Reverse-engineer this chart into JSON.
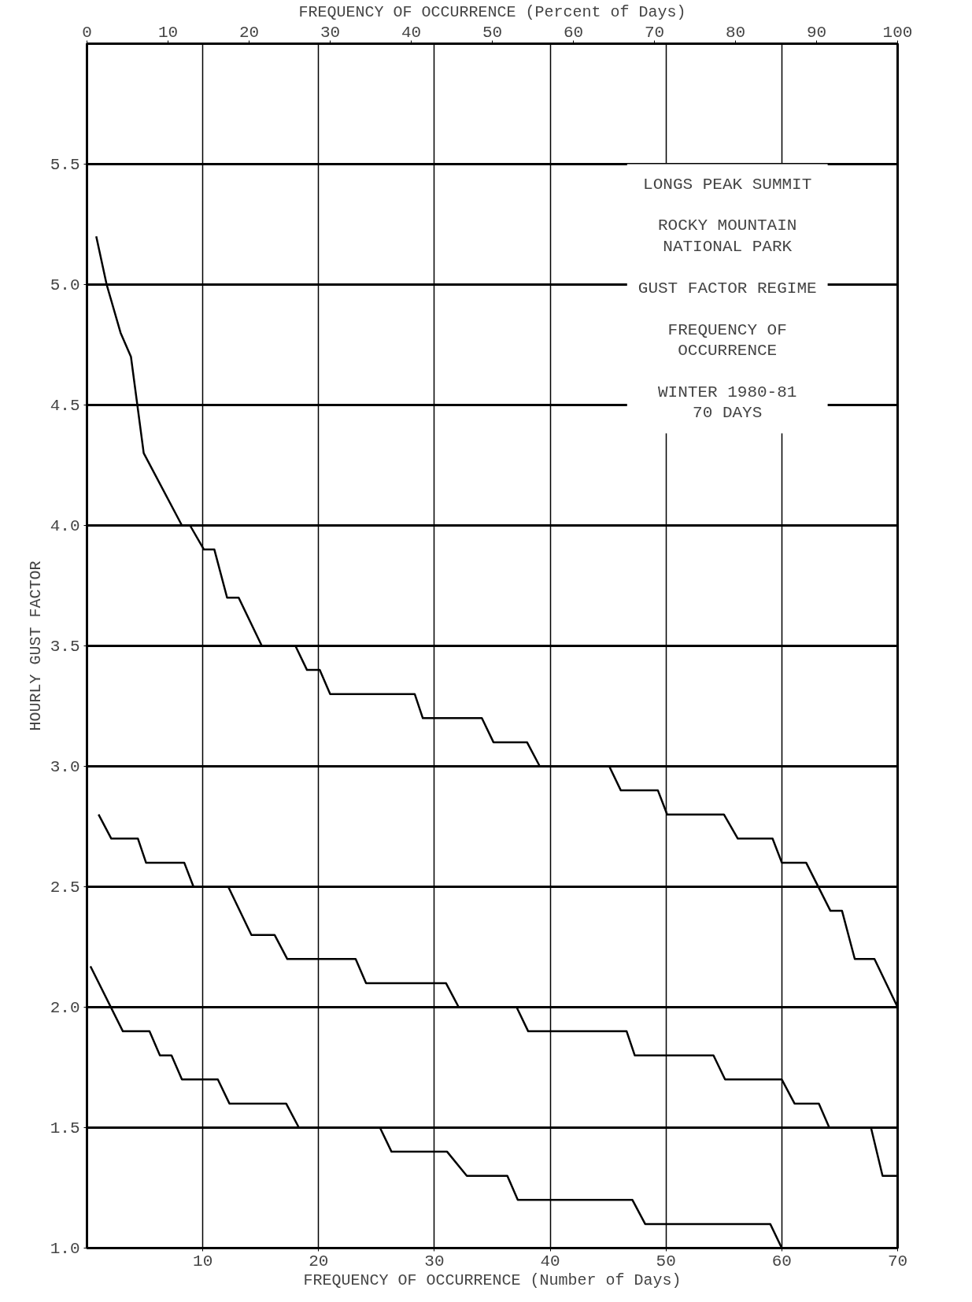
{
  "chart_data": {
    "type": "line",
    "xlabel": "FREQUENCY OF OCCURRENCE (Number of Days)",
    "x2label": "FREQUENCY OF OCCURRENCE (Percent of Days)",
    "ylabel": "HOURLY GUST FACTOR",
    "annotations": [
      "LONGS PEAK SUMMIT",
      "ROCKY MOUNTAIN\nNATIONAL PARK",
      "GUST FACTOR REGIME",
      "FREQUENCY OF\nOCCURRENCE",
      "WINTER 1980-81\n70 DAYS"
    ],
    "xlim": [
      0,
      70
    ],
    "xticks": [
      10,
      20,
      30,
      40,
      50,
      60,
      70
    ],
    "x2lim": [
      0,
      100
    ],
    "x2ticks": [
      0,
      10,
      20,
      30,
      40,
      50,
      60,
      70,
      80,
      90,
      100
    ],
    "ylim": [
      1.0,
      6.0
    ],
    "yticks": [
      {
        "value": 1.0,
        "label": "1.0"
      },
      {
        "value": 1.5,
        "label": "1.5"
      },
      {
        "value": 2.0,
        "label": "2.0"
      },
      {
        "value": 2.5,
        "label": "2.5"
      },
      {
        "value": 3.0,
        "label": "3.0"
      },
      {
        "value": 3.5,
        "label": "3.5"
      },
      {
        "value": 4.0,
        "label": "4.0"
      },
      {
        "value": 4.5,
        "label": "4.5"
      },
      {
        "value": 5.0,
        "label": "5.0"
      },
      {
        "value": 5.5,
        "label": "5.5"
      }
    ],
    "grid": true,
    "marker": "none",
    "line_style": "solid",
    "series": [
      {
        "color": "#000000",
        "x": [
          0.8,
          1.7,
          2.9,
          3.8,
          4.9,
          8.2,
          8.9,
          10.1,
          11,
          12.1,
          13.1,
          15.1,
          18,
          19,
          20.1,
          21,
          28.3,
          29,
          34.1,
          35.1,
          38,
          39.1,
          45.1,
          46.1,
          49.3,
          50.1,
          55,
          56.2,
          59.2,
          60,
          62.1,
          64.2,
          65.2,
          66.3,
          68,
          70
        ],
        "values": [
          5.2,
          5.0,
          4.8,
          4.7,
          4.3,
          4.0,
          4.0,
          3.9,
          3.9,
          3.7,
          3.7,
          3.5,
          3.5,
          3.4,
          3.4,
          3.3,
          3.3,
          3.2,
          3.2,
          3.1,
          3.1,
          3.0,
          3.0,
          2.9,
          2.9,
          2.8,
          2.8,
          2.7,
          2.7,
          2.6,
          2.6,
          2.4,
          2.4,
          2.2,
          2.2,
          2.0
        ]
      },
      {
        "color": "#000000",
        "x": [
          1,
          2.1,
          4.4,
          5.1,
          8.4,
          9.2,
          12.2,
          14.2,
          16.2,
          17.3,
          23.2,
          24.1,
          31,
          32.1,
          37.1,
          38.1,
          46.6,
          47.3,
          54.1,
          55.1,
          60,
          61.1,
          63.2,
          64.1,
          67.7,
          68.7,
          70
        ],
        "values": [
          2.8,
          2.7,
          2.7,
          2.6,
          2.6,
          2.5,
          2.5,
          2.3,
          2.3,
          2.2,
          2.2,
          2.1,
          2.1,
          2.0,
          2.0,
          1.9,
          1.9,
          1.8,
          1.8,
          1.7,
          1.7,
          1.6,
          1.6,
          1.5,
          1.5,
          1.3,
          1.3
        ]
      },
      {
        "color": "#000000",
        "x": [
          0.3,
          3.1,
          5.4,
          6.3,
          7.3,
          8.2,
          11.3,
          12.3,
          17.2,
          18.3,
          25.3,
          26.3,
          31.1,
          32.8,
          36.3,
          37.2,
          47.1,
          48.2,
          59,
          60
        ],
        "values": [
          2.17,
          1.9,
          1.9,
          1.8,
          1.8,
          1.7,
          1.7,
          1.6,
          1.6,
          1.5,
          1.5,
          1.4,
          1.4,
          1.3,
          1.3,
          1.2,
          1.2,
          1.1,
          1.1,
          1.0
        ]
      }
    ]
  }
}
